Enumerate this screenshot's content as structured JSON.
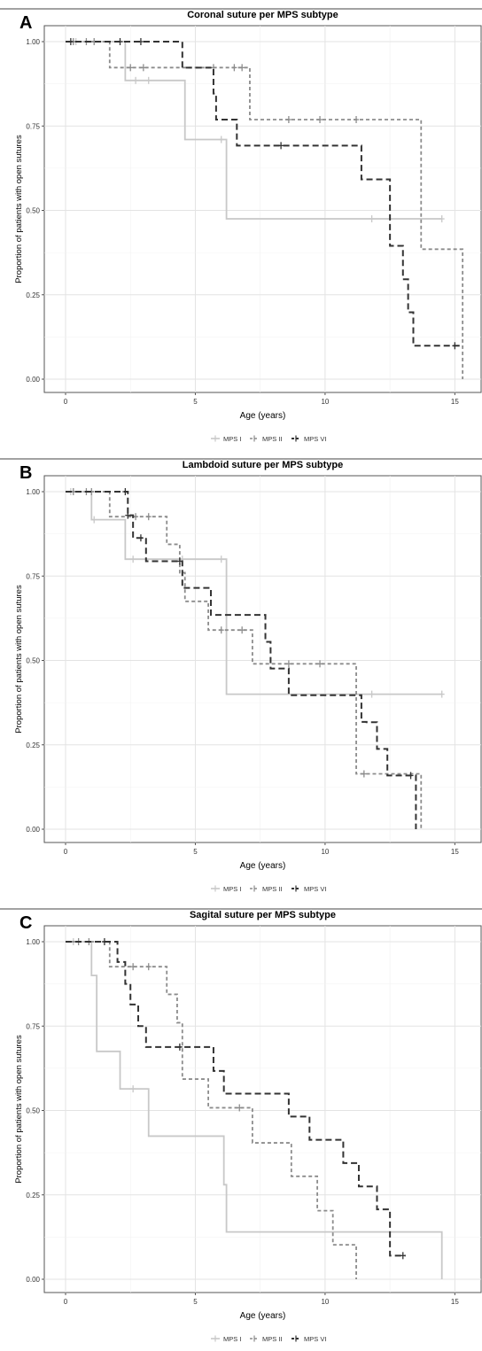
{
  "legend_labels": [
    "MPS I",
    "MPS II",
    "MPS VI"
  ],
  "chart_data": [
    {
      "type": "line",
      "step": true,
      "panel_letter": "A",
      "title": "Coronal suture per MPS subtype",
      "xlabel": "Age (years)",
      "ylabel": "Proportion of patients with open sutures",
      "xlim": [
        0,
        15.5
      ],
      "ylim": [
        0,
        1
      ],
      "xticks": [
        "0",
        "5",
        "10",
        "15"
      ],
      "yticks": [
        "0.00",
        "0.25",
        "0.50",
        "0.75",
        "1.00"
      ],
      "grid": true,
      "legend_position": "bottom",
      "series": [
        {
          "name": "MPS I",
          "color": "#c8c8c8",
          "dash": "solid",
          "x": [
            0,
            2.3,
            4.6,
            6.2,
            14.5
          ],
          "y": [
            1.0,
            0.885,
            0.71,
            0.475,
            0.475
          ],
          "censor": [
            [
              0.4,
              1.0
            ],
            [
              2.7,
              0.885
            ],
            [
              3.2,
              0.885
            ],
            [
              6.0,
              0.71
            ],
            [
              11.8,
              0.475
            ],
            [
              14.5,
              0.475
            ]
          ]
        },
        {
          "name": "MPS II",
          "color": "#8c8c8c",
          "dash": "dashed",
          "x": [
            0,
            1.7,
            4.5,
            7.1,
            13.7,
            15.3,
            15.3
          ],
          "y": [
            1.0,
            0.923,
            0.923,
            0.769,
            0.385,
            0.385,
            0.0
          ],
          "censor": [
            [
              0.3,
              1.0
            ],
            [
              0.8,
              1.0
            ],
            [
              1.1,
              1.0
            ],
            [
              2.5,
              0.923
            ],
            [
              3.0,
              0.923
            ],
            [
              5.7,
              0.923
            ],
            [
              6.5,
              0.923
            ],
            [
              6.8,
              0.923
            ],
            [
              8.6,
              0.769
            ],
            [
              9.8,
              0.769
            ],
            [
              11.2,
              0.769
            ]
          ]
        },
        {
          "name": "MPS VI",
          "color": "#333333",
          "dash": "dashed",
          "x": [
            0,
            4.5,
            5.7,
            5.8,
            6.6,
            11.4,
            12.5,
            13.0,
            13.2,
            13.4,
            15.2
          ],
          "y": [
            1.0,
            0.923,
            0.846,
            0.769,
            0.692,
            0.592,
            0.395,
            0.296,
            0.198,
            0.099,
            0.099
          ],
          "censor": [
            [
              0.2,
              1.0
            ],
            [
              2.1,
              1.0
            ],
            [
              2.9,
              1.0
            ],
            [
              8.3,
              0.692
            ],
            [
              15.0,
              0.099
            ]
          ]
        }
      ]
    },
    {
      "type": "line",
      "step": true,
      "panel_letter": "B",
      "title": "Lambdoid suture per MPS subtype",
      "xlabel": "Age (years)",
      "ylabel": "Proportion of patients with open sutures",
      "xlim": [
        0,
        15.5
      ],
      "ylim": [
        0,
        1
      ],
      "xticks": [
        "0",
        "5",
        "10",
        "15"
      ],
      "yticks": [
        "0.00",
        "0.25",
        "0.50",
        "0.75",
        "1.00"
      ],
      "grid": true,
      "legend_position": "bottom",
      "series": [
        {
          "name": "MPS I",
          "color": "#c8c8c8",
          "dash": "solid",
          "x": [
            0,
            1.0,
            2.3,
            6.2,
            14.5
          ],
          "y": [
            1.0,
            0.917,
            0.8,
            0.4,
            0.4
          ],
          "censor": [
            [
              0.2,
              1.0
            ],
            [
              1.1,
              0.917
            ],
            [
              2.6,
              0.8
            ],
            [
              4.5,
              0.8
            ],
            [
              6.0,
              0.8
            ],
            [
              11.8,
              0.4
            ],
            [
              14.5,
              0.4
            ]
          ]
        },
        {
          "name": "MPS II",
          "color": "#8c8c8c",
          "dash": "dashed",
          "x": [
            0,
            1.7,
            3.9,
            4.4,
            4.6,
            5.5,
            7.2,
            11.2,
            13.7,
            13.7
          ],
          "y": [
            1.0,
            0.926,
            0.844,
            0.76,
            0.675,
            0.59,
            0.49,
            0.164,
            0.164,
            0.0
          ],
          "censor": [
            [
              0.3,
              1.0
            ],
            [
              0.8,
              1.0
            ],
            [
              1.0,
              1.0
            ],
            [
              2.7,
              0.926
            ],
            [
              3.2,
              0.926
            ],
            [
              6.0,
              0.59
            ],
            [
              6.8,
              0.59
            ],
            [
              8.6,
              0.49
            ],
            [
              9.8,
              0.49
            ],
            [
              11.5,
              0.164
            ]
          ]
        },
        {
          "name": "MPS VI",
          "color": "#333333",
          "dash": "dashed",
          "x": [
            0,
            2.4,
            2.6,
            3.1,
            4.5,
            5.6,
            7.7,
            7.9,
            8.6,
            11.4,
            11.6,
            12.0,
            12.4,
            13.5
          ],
          "y": [
            1.0,
            0.93,
            0.863,
            0.794,
            0.715,
            0.635,
            0.555,
            0.476,
            0.397,
            0.318,
            0.317,
            0.238,
            0.159,
            0.0
          ],
          "censor": [
            [
              2.3,
              1.0
            ],
            [
              2.4,
              0.93
            ],
            [
              2.9,
              0.863
            ],
            [
              4.4,
              0.794
            ],
            [
              13.3,
              0.159
            ]
          ]
        }
      ]
    },
    {
      "type": "line",
      "step": true,
      "panel_letter": "C",
      "title": "Sagital suture per MPS subtype",
      "xlabel": "Age (years)",
      "ylabel": "Proportion of patients with open sutures",
      "xlim": [
        0,
        15.5
      ],
      "ylim": [
        0,
        1
      ],
      "xticks": [
        "0",
        "5",
        "10",
        "15"
      ],
      "yticks": [
        "0.00",
        "0.25",
        "0.50",
        "0.75",
        "1.00"
      ],
      "grid": true,
      "legend_position": "bottom",
      "series": [
        {
          "name": "MPS I",
          "color": "#c8c8c8",
          "dash": "solid",
          "x": [
            0,
            1.0,
            1.2,
            2.1,
            3.2,
            6.1,
            6.2,
            14.5,
            14.5
          ],
          "y": [
            1.0,
            0.9,
            0.675,
            0.564,
            0.424,
            0.28,
            0.14,
            0.14,
            0.0
          ],
          "censor": [
            [
              0.3,
              1.0
            ],
            [
              2.6,
              0.564
            ]
          ]
        },
        {
          "name": "MPS II",
          "color": "#8c8c8c",
          "dash": "dashed",
          "x": [
            0,
            1.7,
            3.9,
            4.3,
            4.5,
            5.5,
            7.2,
            8.7,
            9.7,
            10.3,
            11.2
          ],
          "y": [
            1.0,
            0.926,
            0.844,
            0.76,
            0.593,
            0.508,
            0.404,
            0.305,
            0.203,
            0.102,
            0.0
          ],
          "censor": [
            [
              0.5,
              1.0
            ],
            [
              0.9,
              1.0
            ],
            [
              2.6,
              0.926
            ],
            [
              3.2,
              0.926
            ],
            [
              6.7,
              0.508
            ]
          ]
        },
        {
          "name": "MPS VI",
          "color": "#333333",
          "dash": "dashed",
          "x": [
            0,
            2.0,
            2.3,
            2.5,
            2.8,
            3.1,
            5.7,
            6.1,
            8.6,
            9.4,
            10.7,
            11.3,
            12.0,
            12.5,
            13.1
          ],
          "y": [
            1.0,
            0.94,
            0.875,
            0.814,
            0.75,
            0.688,
            0.617,
            0.55,
            0.482,
            0.413,
            0.344,
            0.275,
            0.207,
            0.07,
            0.07
          ],
          "censor": [
            [
              1.5,
              1.0
            ],
            [
              4.4,
              0.688
            ],
            [
              13.0,
              0.07
            ]
          ]
        }
      ]
    }
  ]
}
